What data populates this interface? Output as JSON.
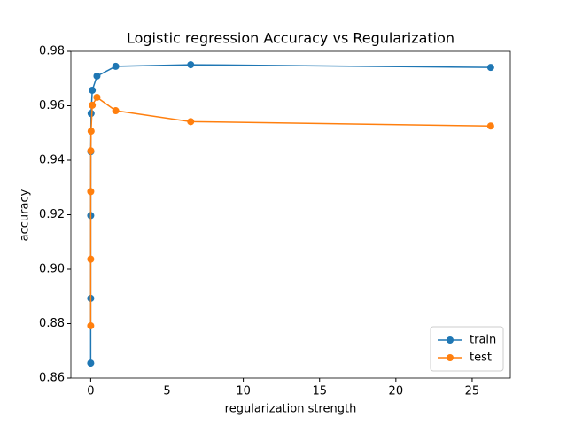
{
  "chart_data": {
    "type": "line",
    "title": "Logistic regression Accuracy vs Regularization",
    "xlabel": "regularization strength",
    "ylabel": "accuracy",
    "x": [
      0.0001,
      0.0004,
      0.0016,
      0.0064,
      0.0256,
      0.1024,
      0.4096,
      1.6384,
      6.5536,
      26.2144
    ],
    "series": [
      {
        "name": "train",
        "color": "#1f77b4",
        "values": [
          0.8655,
          0.8893,
          0.9197,
          0.9432,
          0.9572,
          0.9657,
          0.9709,
          0.9745,
          0.9751,
          0.9741
        ]
      },
      {
        "name": "test",
        "color": "#ff7f0e",
        "values": [
          0.8792,
          0.9037,
          0.9285,
          0.9435,
          0.9507,
          0.9602,
          0.9631,
          0.9582,
          0.9542,
          0.9526
        ]
      }
    ],
    "xlim": [
      -1.3,
      27.5
    ],
    "xticks": [
      0,
      5,
      10,
      15,
      20,
      25
    ],
    "ylim": [
      0.86,
      0.98
    ],
    "yticks": [
      0.86,
      0.88,
      {
        "value": 0.9,
        "label": "0.90"
      },
      0.92,
      0.94,
      0.96,
      0.98
    ],
    "legend": "lower right"
  }
}
